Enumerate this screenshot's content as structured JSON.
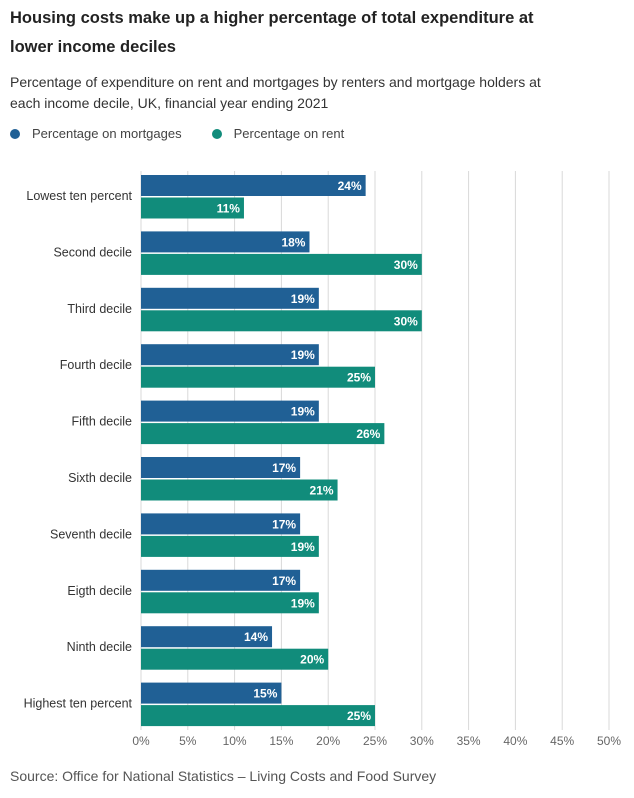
{
  "title": "Housing costs make up a higher percentage of total expenditure at lower income deciles",
  "subtitle": "Percentage of expenditure on rent and mortgages by renters and mortgage holders at each income decile, UK, financial year ending 2021",
  "source": "Source: Office for National Statistics – Living Costs and Food Survey",
  "colors": {
    "mortgages": "#206095",
    "rent": "#118C7B",
    "grid": "#d9d9d9"
  },
  "chart_data": {
    "type": "bar",
    "orientation": "horizontal",
    "categories": [
      "Lowest ten percent",
      "Second decile",
      "Third decile",
      "Fourth decile",
      "Fifth decile",
      "Sixth decile",
      "Seventh decile",
      "Eigth decile",
      "Ninth decile",
      "Highest ten percent"
    ],
    "series": [
      {
        "name": "Percentage on mortgages",
        "color": "#206095",
        "values": [
          24,
          18,
          19,
          19,
          19,
          17,
          17,
          17,
          14,
          15
        ],
        "labels": [
          "24%",
          "18%",
          "19%",
          "19%",
          "19%",
          "17%",
          "17%",
          "17%",
          "14%",
          "15%"
        ]
      },
      {
        "name": "Percentage on rent",
        "color": "#118C7B",
        "values": [
          11,
          30,
          30,
          25,
          26,
          21,
          19,
          19,
          20,
          25
        ],
        "labels": [
          "11%",
          "30%",
          "30%",
          "25%",
          "26%",
          "21%",
          "19%",
          "19%",
          "20%",
          "25%"
        ]
      }
    ],
    "xlim": [
      0,
      50
    ],
    "xticks": [
      0,
      5,
      10,
      15,
      20,
      25,
      30,
      35,
      40,
      45,
      50
    ],
    "xtick_labels": [
      "0%",
      "5%",
      "10%",
      "15%",
      "20%",
      "25%",
      "30%",
      "35%",
      "40%",
      "45%",
      "50%"
    ],
    "grid": true,
    "legend_position": "top-left"
  }
}
